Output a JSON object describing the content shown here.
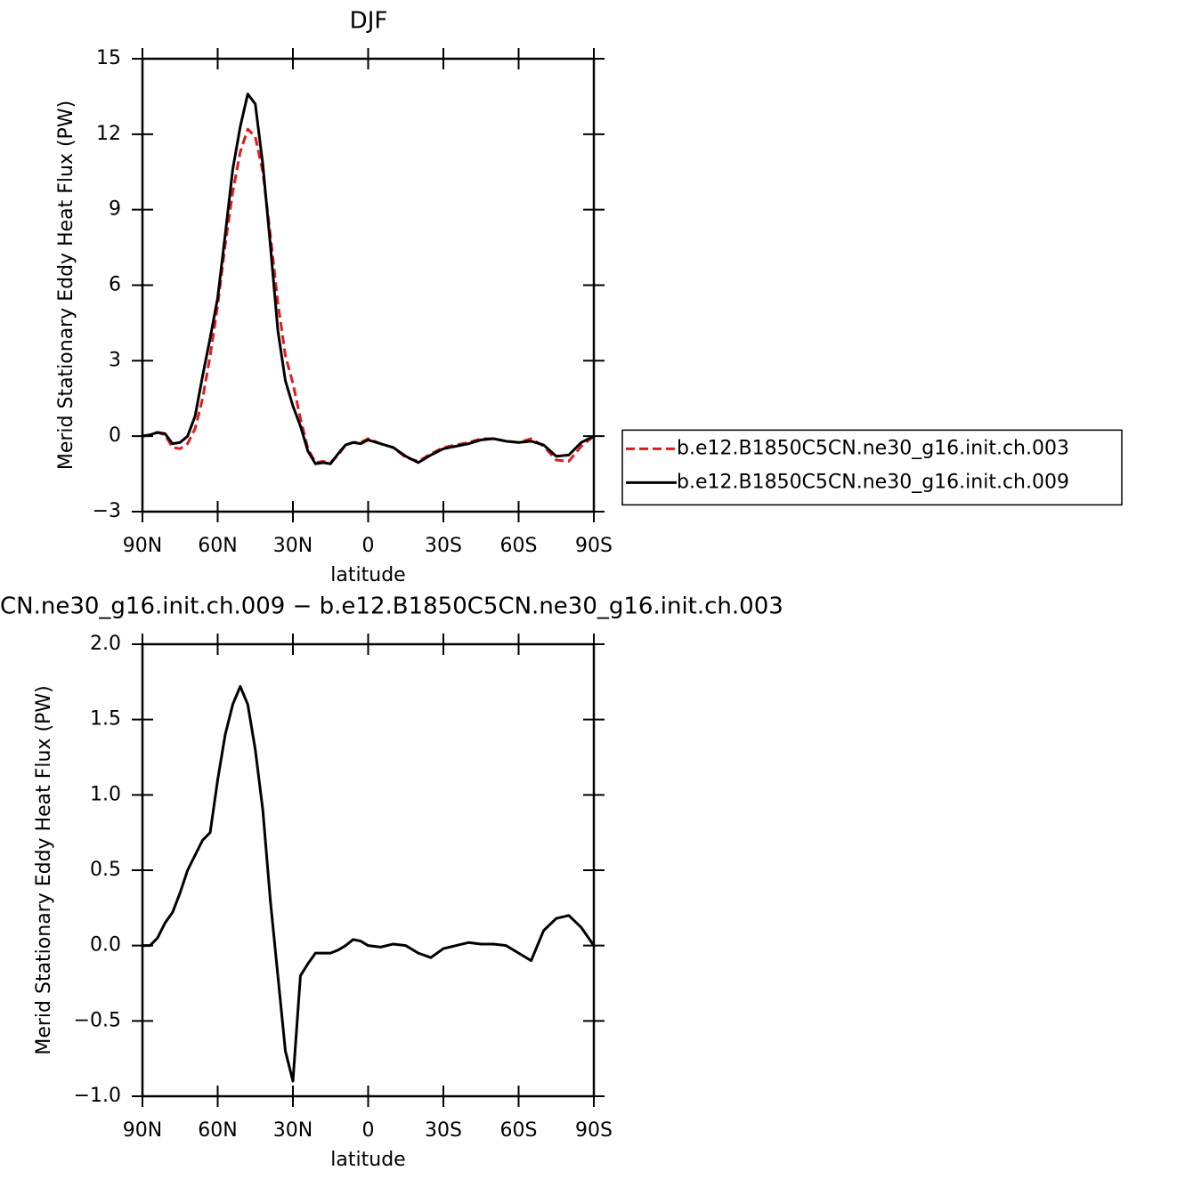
{
  "chart_data": [
    {
      "type": "line",
      "title": "DJF",
      "xlabel": "latitude",
      "ylabel": "Merid Stationary Eddy Heat Flux (PW)",
      "x": [
        90,
        87,
        84,
        81,
        78,
        75,
        72,
        69,
        66,
        63,
        60,
        57,
        54,
        51,
        48,
        45,
        42,
        39,
        36,
        33,
        30,
        27,
        24,
        21,
        18,
        15,
        12,
        9,
        6,
        3,
        0,
        -5,
        -10,
        -15,
        -20,
        -25,
        -30,
        -35,
        -40,
        -45,
        -50,
        -55,
        -60,
        -65,
        -70,
        -75,
        -80,
        -85,
        -90
      ],
      "series": [
        {
          "name": "b.e12.B1850C5CN.ne30_g16.init.ch.003",
          "color": "#e31a1c",
          "line_style": "dashed",
          "values": [
            0,
            0.05,
            0.15,
            0.05,
            -0.45,
            -0.5,
            -0.3,
            0.3,
            1.5,
            3.2,
            5.2,
            7.6,
            9.7,
            11.3,
            12.2,
            11.9,
            10.5,
            8.0,
            5.3,
            3.2,
            2.1,
            0.7,
            -0.5,
            -1.05,
            -1.0,
            -1.05,
            -0.75,
            -0.35,
            -0.25,
            -0.25,
            -0.1,
            -0.3,
            -0.45,
            -0.85,
            -1.0,
            -0.7,
            -0.45,
            -0.35,
            -0.25,
            -0.1,
            -0.1,
            -0.2,
            -0.25,
            -0.1,
            -0.4,
            -0.95,
            -1.0,
            -0.4,
            0
          ]
        },
        {
          "name": "b.e12.B1850C5CN.ne30_g16.init.ch.009",
          "color": "#000000",
          "line_style": "solid",
          "values": [
            0,
            0.05,
            0.15,
            0.1,
            -0.3,
            -0.25,
            0,
            0.8,
            2.4,
            3.9,
            5.5,
            8.0,
            10.6,
            12.3,
            13.6,
            13.2,
            10.8,
            7.6,
            4.2,
            2.2,
            1.2,
            0.4,
            -0.6,
            -1.1,
            -1.05,
            -1.1,
            -0.7,
            -0.35,
            -0.25,
            -0.3,
            -0.15,
            -0.3,
            -0.45,
            -0.8,
            -1.05,
            -0.75,
            -0.5,
            -0.4,
            -0.3,
            -0.15,
            -0.1,
            -0.2,
            -0.25,
            -0.2,
            -0.35,
            -0.8,
            -0.75,
            -0.25,
            0
          ]
        }
      ],
      "xlim": [
        90,
        -90
      ],
      "xticks": [
        {
          "value": 90,
          "label": "90N"
        },
        {
          "value": 60,
          "label": "60N"
        },
        {
          "value": 30,
          "label": "30N"
        },
        0,
        {
          "value": -30,
          "label": "30S"
        },
        {
          "value": -60,
          "label": "60S"
        },
        {
          "value": -90,
          "label": "90S"
        }
      ],
      "ylim": [
        -3,
        15
      ],
      "yticks": [
        {
          "value": -3,
          "label": "−3"
        },
        0,
        3,
        6,
        9,
        12,
        15
      ],
      "legend": "right"
    },
    {
      "type": "line",
      "title": "CN.ne30_g16.init.ch.009 − b.e12.B1850C5CN.ne30_g16.init.ch.003",
      "xlabel": "latitude",
      "ylabel": "Merid Stationary Eddy Heat Flux (PW)",
      "x": [
        90,
        87,
        84,
        81,
        78,
        75,
        72,
        69,
        66,
        63,
        60,
        57,
        54,
        51,
        48,
        45,
        42,
        39,
        36,
        33,
        30,
        27,
        24,
        21,
        18,
        15,
        12,
        9,
        6,
        3,
        0,
        -5,
        -10,
        -15,
        -20,
        -25,
        -30,
        -35,
        -40,
        -45,
        -50,
        -55,
        -60,
        -65,
        -70,
        -75,
        -80,
        -85,
        -90
      ],
      "series": [
        {
          "color": "#000000",
          "line_style": "solid",
          "values": [
            0,
            0,
            0.05,
            0.15,
            0.22,
            0.35,
            0.5,
            0.6,
            0.7,
            0.75,
            1.1,
            1.4,
            1.6,
            1.72,
            1.6,
            1.3,
            0.9,
            0.3,
            -0.2,
            -0.7,
            -0.9,
            -0.2,
            -0.12,
            -0.05,
            -0.05,
            -0.05,
            -0.03,
            0,
            0.04,
            0.03,
            0,
            -0.01,
            0.01,
            0,
            -0.05,
            -0.08,
            -0.02,
            0,
            0.02,
            0.01,
            0.01,
            0,
            -0.05,
            -0.1,
            0.1,
            0.18,
            0.2,
            0.12,
            0
          ]
        }
      ],
      "xlim": [
        90,
        -90
      ],
      "xticks": [
        {
          "value": 90,
          "label": "90N"
        },
        {
          "value": 60,
          "label": "60N"
        },
        {
          "value": 30,
          "label": "30N"
        },
        0,
        {
          "value": -30,
          "label": "30S"
        },
        {
          "value": -60,
          "label": "60S"
        },
        {
          "value": -90,
          "label": "90S"
        }
      ],
      "ylim": [
        -1,
        2
      ],
      "yticks": [
        {
          "value": -1,
          "label": "−1.0"
        },
        {
          "value": -0.5,
          "label": "−0.5"
        },
        {
          "value": 0,
          "label": "0.0"
        },
        {
          "value": 0.5,
          "label": "0.5"
        },
        {
          "value": 1,
          "label": "1.0"
        },
        {
          "value": 1.5,
          "label": "1.5"
        },
        {
          "value": 2,
          "label": "2.0"
        }
      ]
    }
  ]
}
